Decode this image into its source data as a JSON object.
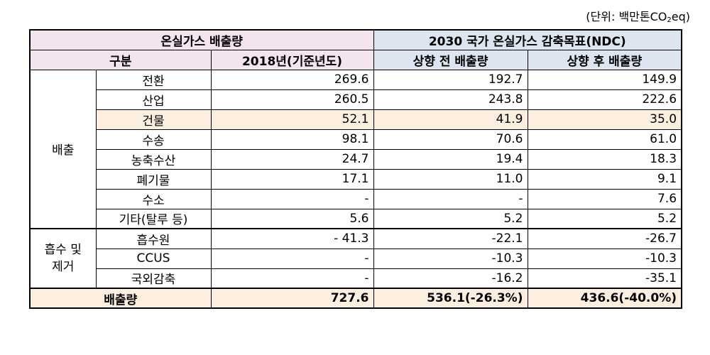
{
  "unit_note": "(단위:  백만톤CO",
  "unit_sub": "2",
  "unit_tail": "eq)",
  "header": {
    "left_group": "온실가스 배출량",
    "right_group": "2030 국가 온실가스 감축목표(NDC)",
    "col_category": "구분",
    "col_2018": "2018년(기준년도)",
    "col_before": "상향 전 배출량",
    "col_after": "상향 후 배출량"
  },
  "group_emission": "배출",
  "group_removal": "흡수 및\n제거",
  "emission_rows": [
    {
      "name": "전환",
      "y2018": "269.6",
      "before": "192.7",
      "after": "149.9",
      "hl": false
    },
    {
      "name": "산업",
      "y2018": "260.5",
      "before": "243.8",
      "after": "222.6",
      "hl": false
    },
    {
      "name": "건물",
      "y2018": "52.1",
      "before": "41.9",
      "after": "35.0",
      "hl": true
    },
    {
      "name": "수송",
      "y2018": "98.1",
      "before": "70.6",
      "after": "61.0",
      "hl": false
    },
    {
      "name": "농축수산",
      "y2018": "24.7",
      "before": "19.4",
      "after": "18.3",
      "hl": false
    },
    {
      "name": "폐기물",
      "y2018": "17.1",
      "before": "11.0",
      "after": "9.1",
      "hl": false
    },
    {
      "name": "수소",
      "y2018": "-",
      "before": "-",
      "after": "7.6",
      "hl": false
    },
    {
      "name": "기타(탈루 등)",
      "y2018": "5.6",
      "before": "5.2",
      "after": "5.2",
      "hl": false
    }
  ],
  "removal_rows": [
    {
      "name": "흡수원",
      "y2018": "- 41.3",
      "before": "-22.1",
      "after": "-26.7"
    },
    {
      "name": "CCUS",
      "y2018": "-",
      "before": "-10.3",
      "after": "-10.3"
    },
    {
      "name": "국외감축",
      "y2018": "-",
      "before": "-16.2",
      "after": "-35.1"
    }
  ],
  "total": {
    "label": "배출량",
    "y2018": "727.6",
    "before": "536.1(-26.3%)",
    "after": "436.6(-40.0%)"
  }
}
